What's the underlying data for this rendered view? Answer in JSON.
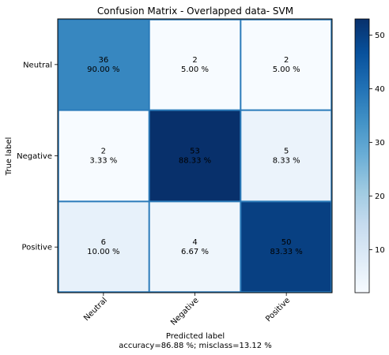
{
  "chart_data": {
    "type": "heatmap",
    "title": "Confusion Matrix - Overlapped data- SVM",
    "xlabel": "Predicted label",
    "ylabel": "True label",
    "footer": "accuracy=86.88 %; misclass=13.12 %",
    "x_categories": [
      "Neutral",
      "Negative",
      "Positive"
    ],
    "y_categories": [
      "Neutral",
      "Negative",
      "Positive"
    ],
    "values": [
      [
        36,
        2,
        2
      ],
      [
        2,
        53,
        5
      ],
      [
        6,
        4,
        50
      ]
    ],
    "percentages": [
      [
        "90.00 %",
        "5.00 %",
        "5.00 %"
      ],
      [
        "3.33 %",
        "88.33 %",
        "8.33 %"
      ],
      [
        "10.00 %",
        "6.67 %",
        "83.33 %"
      ]
    ],
    "colorbar": {
      "min": 2,
      "max": 53,
      "ticks": [
        10,
        20,
        30,
        40,
        50
      ],
      "colormap": "Blues"
    },
    "grid": true
  }
}
